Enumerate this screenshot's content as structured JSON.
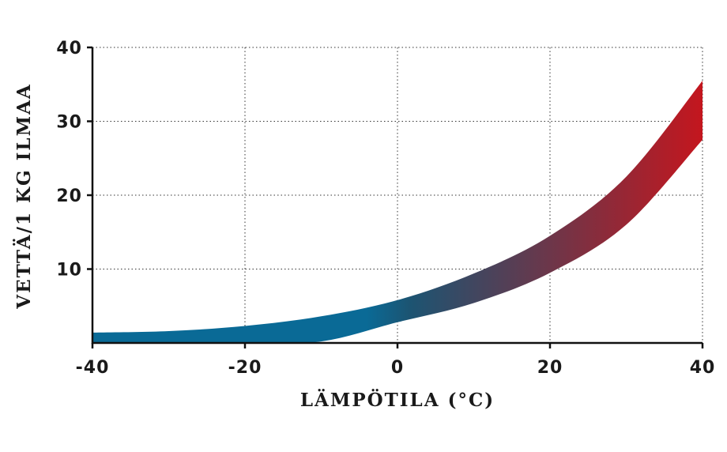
{
  "chart_data": {
    "type": "area",
    "xlabel": "LÄMPÖTILA (°C)",
    "ylabel": "VETTÄ/1 KG ILMAA",
    "xlim": [
      -40,
      40
    ],
    "ylim": [
      0,
      40
    ],
    "xticks": [
      "-40",
      "-20",
      "0",
      "20",
      "40"
    ],
    "yticks": [
      "10",
      "20",
      "30",
      "40"
    ],
    "grid": true,
    "series": [
      {
        "x": [
          -40,
          -30,
          -20,
          -10,
          0,
          10,
          20,
          30,
          40
        ],
        "lower": [
          0,
          0,
          0,
          0.2,
          2.8,
          5.4,
          9.5,
          16,
          27.5
        ],
        "upper": [
          1.4,
          1.6,
          2.3,
          3.6,
          5.8,
          9.4,
          14.5,
          22.5,
          35.5
        ]
      }
    ],
    "colors": {
      "start": "#0a6a96",
      "middle": "#1c5472",
      "end": "#c4161e"
    }
  }
}
